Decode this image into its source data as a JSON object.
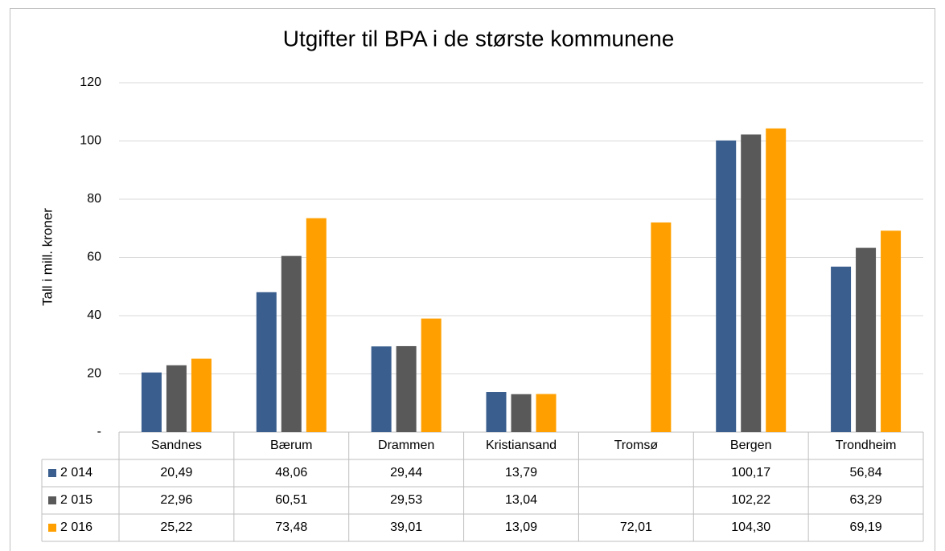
{
  "chart_data": {
    "type": "bar",
    "title": "Utgifter til BPA i de største kommunene",
    "y_label": "Tall i mill. kroner",
    "categories": [
      "Sandnes",
      "Bærum",
      "Drammen",
      "Kristiansand",
      "Tromsø",
      "Bergen",
      "Trondheim"
    ],
    "series": [
      {
        "name": "2 014",
        "color": "#3a5f8f",
        "values": [
          20.49,
          48.06,
          29.44,
          13.79,
          null,
          100.17,
          56.84
        ],
        "value_labels": [
          "20,49",
          "48,06",
          "29,44",
          "13,79",
          null,
          "100,17",
          "56,84"
        ]
      },
      {
        "name": "2 015",
        "color": "#595959",
        "values": [
          22.96,
          60.51,
          29.53,
          13.04,
          null,
          102.22,
          63.29
        ],
        "value_labels": [
          "22,96",
          "60,51",
          "29,53",
          "13,04",
          null,
          "102,22",
          "63,29"
        ]
      },
      {
        "name": "2 016",
        "color": "#ffa000",
        "values": [
          25.22,
          73.48,
          39.01,
          13.09,
          72.01,
          104.3,
          69.19
        ],
        "value_labels": [
          "25,22",
          "73,48",
          "39,01",
          "13,09",
          "72,01",
          "104,30",
          "69,19"
        ]
      }
    ],
    "ylim": [
      0,
      120
    ],
    "yticks": [
      {
        "value": 0,
        "label": "-"
      },
      20,
      40,
      60,
      80,
      100,
      120
    ],
    "grid": true
  }
}
